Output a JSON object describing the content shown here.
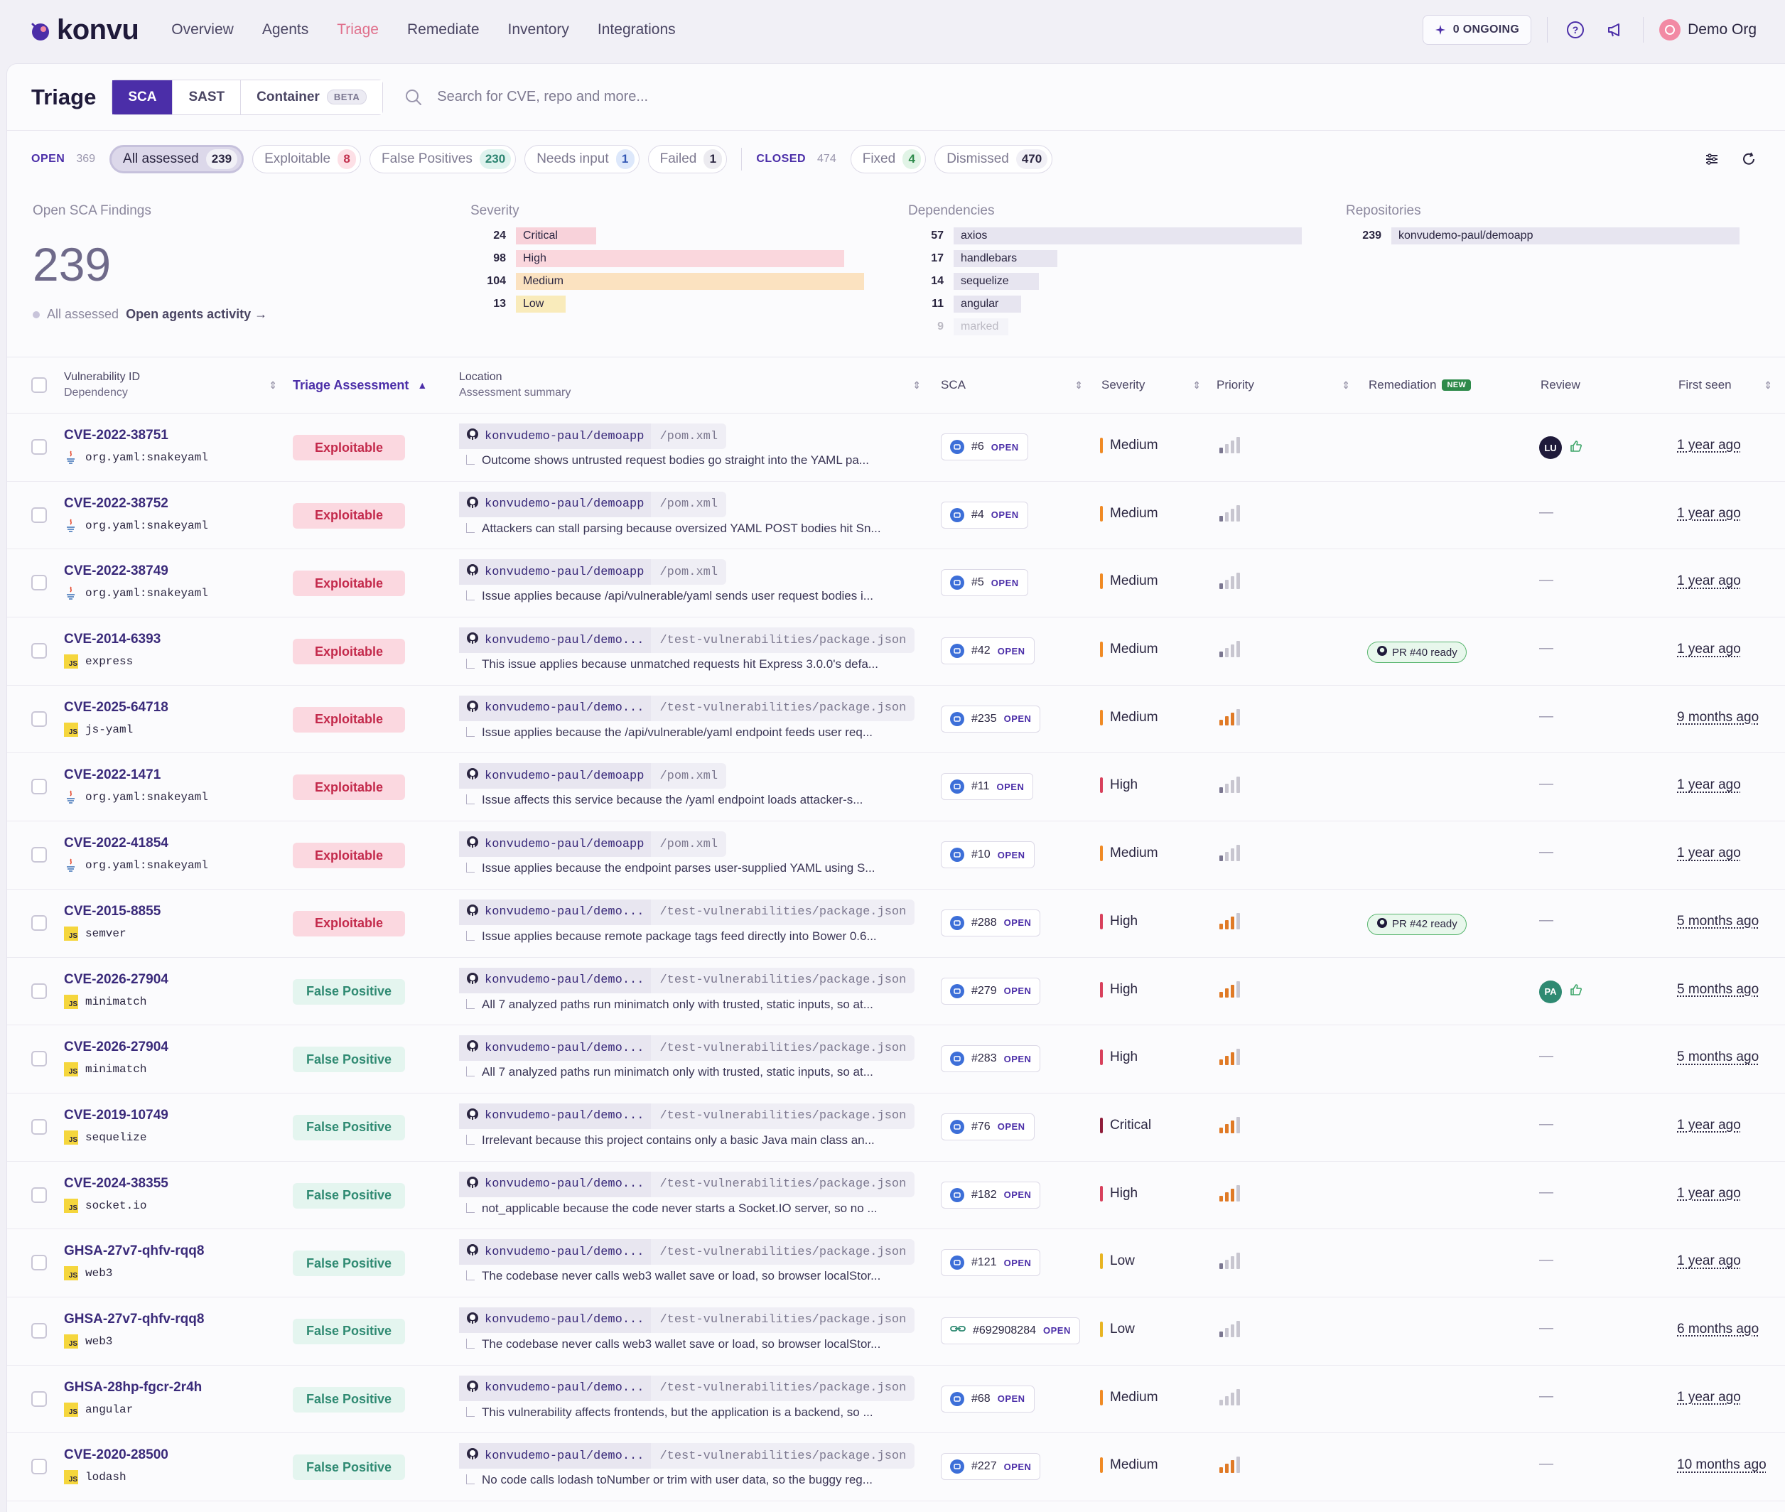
{
  "brand": "konvu",
  "nav": {
    "links": [
      "Overview",
      "Agents",
      "Triage",
      "Remediate",
      "Inventory",
      "Integrations"
    ],
    "active": "Triage",
    "ongoing_label": "0 ONGOING",
    "org_name": "Demo Org"
  },
  "triage": {
    "title": "Triage",
    "tabs": [
      {
        "label": "SCA",
        "active": true
      },
      {
        "label": "SAST",
        "active": false
      },
      {
        "label": "Container",
        "badge": "BETA",
        "active": false
      }
    ],
    "search_placeholder": "Search for CVE, repo and more..."
  },
  "filters": {
    "open_label": "OPEN",
    "open_count": "369",
    "open_chips": [
      {
        "label": "All assessed",
        "count": "239",
        "tone": "neutral",
        "active": true
      },
      {
        "label": "Exploitable",
        "count": "8",
        "tone": "red"
      },
      {
        "label": "False Positives",
        "count": "230",
        "tone": "teal"
      },
      {
        "label": "Needs input",
        "count": "1",
        "tone": "blue"
      },
      {
        "label": "Failed",
        "count": "1",
        "tone": "gray"
      }
    ],
    "closed_label": "CLOSED",
    "closed_count": "474",
    "closed_chips": [
      {
        "label": "Fixed",
        "count": "4",
        "tone": "green"
      },
      {
        "label": "Dismissed",
        "count": "470",
        "tone": "neutral"
      }
    ]
  },
  "stats": {
    "open_title": "Open SCA Findings",
    "open_total": "239",
    "assessed_label": "All assessed",
    "agents_link": "Open agents activity →",
    "severity_title": "Severity",
    "severity": [
      {
        "count": 24,
        "label": "Critical",
        "color": "#f8d2da"
      },
      {
        "count": 98,
        "label": "High",
        "color": "#fad7dd"
      },
      {
        "count": 104,
        "label": "Medium",
        "color": "#fbe2c0"
      },
      {
        "count": 13,
        "label": "Low",
        "color": "#f9ebbb"
      }
    ],
    "dependencies_title": "Dependencies",
    "dependencies": [
      {
        "count": 57,
        "label": "axios"
      },
      {
        "count": 17,
        "label": "handlebars"
      },
      {
        "count": 14,
        "label": "sequelize"
      },
      {
        "count": 11,
        "label": "angular"
      },
      {
        "count": 9,
        "label": "marked"
      }
    ],
    "repositories_title": "Repositories",
    "repositories": [
      {
        "count": 239,
        "label": "konvudemo-paul/demoapp"
      }
    ]
  },
  "table": {
    "headers": {
      "vuln_id": "Vulnerability ID",
      "dependency": "Dependency",
      "triage": "Triage Assessment",
      "location": "Location",
      "summary": "Assessment summary",
      "sca": "SCA",
      "severity": "Severity",
      "priority": "Priority",
      "remediation": "Remediation",
      "new_badge": "NEW",
      "review": "Review",
      "first_seen": "First seen"
    },
    "rows": [
      {
        "id": "CVE-2022-38751",
        "dep": "org.yaml:snakeyaml",
        "lang": "java",
        "assessment": "Exploitable",
        "repo": "konvudemo-paul/demoapp",
        "path": "/pom.xml",
        "summary": "Outcome shows untrusted request bodies go straight into the YAML pa...",
        "sca_num": "#6",
        "sca_status": "OPEN",
        "sca_kind": "dep",
        "severity": "Medium",
        "priority": 1,
        "remediation": "",
        "review": {
          "initials": "LU",
          "color": "#1f1a3a"
        },
        "first_seen": "1 year ago"
      },
      {
        "id": "CVE-2022-38752",
        "dep": "org.yaml:snakeyaml",
        "lang": "java",
        "assessment": "Exploitable",
        "repo": "konvudemo-paul/demoapp",
        "path": "/pom.xml",
        "summary": "Attackers can stall parsing because oversized YAML POST bodies hit Sn...",
        "sca_num": "#4",
        "sca_status": "OPEN",
        "sca_kind": "dep",
        "severity": "Medium",
        "priority": 1,
        "remediation": "",
        "review": null,
        "first_seen": "1 year ago"
      },
      {
        "id": "CVE-2022-38749",
        "dep": "org.yaml:snakeyaml",
        "lang": "java",
        "assessment": "Exploitable",
        "repo": "konvudemo-paul/demoapp",
        "path": "/pom.xml",
        "summary": "Issue applies because /api/vulnerable/yaml sends user request bodies i...",
        "sca_num": "#5",
        "sca_status": "OPEN",
        "sca_kind": "dep",
        "severity": "Medium",
        "priority": 1,
        "remediation": "",
        "review": null,
        "first_seen": "1 year ago"
      },
      {
        "id": "CVE-2014-6393",
        "dep": "express",
        "lang": "js",
        "assessment": "Exploitable",
        "repo": "konvudemo-paul/demo...",
        "path": "/test-vulnerabilities/package.json",
        "summary": "This issue applies because unmatched requests hit Express 3.0.0's defa...",
        "sca_num": "#42",
        "sca_status": "OPEN",
        "sca_kind": "dep",
        "severity": "Medium",
        "priority": 1,
        "remediation": "PR #40 ready",
        "review": null,
        "first_seen": "1 year ago"
      },
      {
        "id": "CVE-2025-64718",
        "dep": "js-yaml",
        "lang": "js",
        "assessment": "Exploitable",
        "repo": "konvudemo-paul/demo...",
        "path": "/test-vulnerabilities/package.json",
        "summary": "Issue applies because the /api/vulnerable/yaml endpoint feeds user req...",
        "sca_num": "#235",
        "sca_status": "OPEN",
        "sca_kind": "dep",
        "severity": "Medium",
        "priority": 2,
        "remediation": "",
        "review": null,
        "first_seen": "9 months ago"
      },
      {
        "id": "CVE-2022-1471",
        "dep": "org.yaml:snakeyaml",
        "lang": "java",
        "assessment": "Exploitable",
        "repo": "konvudemo-paul/demoapp",
        "path": "/pom.xml",
        "summary": "Issue affects this service because the /yaml endpoint loads attacker-s...",
        "sca_num": "#11",
        "sca_status": "OPEN",
        "sca_kind": "dep",
        "severity": "High",
        "priority": 1,
        "remediation": "",
        "review": null,
        "first_seen": "1 year ago"
      },
      {
        "id": "CVE-2022-41854",
        "dep": "org.yaml:snakeyaml",
        "lang": "java",
        "assessment": "Exploitable",
        "repo": "konvudemo-paul/demoapp",
        "path": "/pom.xml",
        "summary": "Issue applies because the endpoint parses user-supplied YAML using S...",
        "sca_num": "#10",
        "sca_status": "OPEN",
        "sca_kind": "dep",
        "severity": "Medium",
        "priority": 1,
        "remediation": "",
        "review": null,
        "first_seen": "1 year ago"
      },
      {
        "id": "CVE-2015-8855",
        "dep": "semver",
        "lang": "js",
        "assessment": "Exploitable",
        "repo": "konvudemo-paul/demo...",
        "path": "/test-vulnerabilities/package.json",
        "summary": "Issue applies because remote package tags feed directly into Bower 0.6...",
        "sca_num": "#288",
        "sca_status": "OPEN",
        "sca_kind": "dep",
        "severity": "High",
        "priority": 2,
        "remediation": "PR #42 ready",
        "review": null,
        "first_seen": "5 months ago"
      },
      {
        "id": "CVE-2026-27904",
        "dep": "minimatch",
        "lang": "js",
        "assessment": "False Positive",
        "repo": "konvudemo-paul/demo...",
        "path": "/test-vulnerabilities/package.json",
        "summary": "All 7 analyzed paths run minimatch only with trusted, static inputs, so at...",
        "sca_num": "#279",
        "sca_status": "OPEN",
        "sca_kind": "dep",
        "severity": "High",
        "priority": 2,
        "remediation": "",
        "review": {
          "initials": "PA",
          "color": "#2f8a72"
        },
        "first_seen": "5 months ago"
      },
      {
        "id": "CVE-2026-27904",
        "dep": "minimatch",
        "lang": "js",
        "assessment": "False Positive",
        "repo": "konvudemo-paul/demo...",
        "path": "/test-vulnerabilities/package.json",
        "summary": "All 7 analyzed paths run minimatch only with trusted, static inputs, so at...",
        "sca_num": "#283",
        "sca_status": "OPEN",
        "sca_kind": "dep",
        "severity": "High",
        "priority": 2,
        "remediation": "",
        "review": null,
        "first_seen": "5 months ago"
      },
      {
        "id": "CVE-2019-10749",
        "dep": "sequelize",
        "lang": "js",
        "assessment": "False Positive",
        "repo": "konvudemo-paul/demo...",
        "path": "/test-vulnerabilities/package.json",
        "summary": "Irrelevant because this project contains only a basic Java main class an...",
        "sca_num": "#76",
        "sca_status": "OPEN",
        "sca_kind": "dep",
        "severity": "Critical",
        "priority": 2,
        "remediation": "",
        "review": null,
        "first_seen": "1 year ago"
      },
      {
        "id": "CVE-2024-38355",
        "dep": "socket.io",
        "lang": "js",
        "assessment": "False Positive",
        "repo": "konvudemo-paul/demo...",
        "path": "/test-vulnerabilities/package.json",
        "summary": "not_applicable because the code never starts a Socket.IO server, so no ...",
        "sca_num": "#182",
        "sca_status": "OPEN",
        "sca_kind": "dep",
        "severity": "High",
        "priority": 2,
        "remediation": "",
        "review": null,
        "first_seen": "1 year ago"
      },
      {
        "id": "GHSA-27v7-qhfv-rqq8",
        "dep": "web3",
        "lang": "js",
        "assessment": "False Positive",
        "repo": "konvudemo-paul/demo...",
        "path": "/test-vulnerabilities/package.json",
        "summary": "The codebase never calls web3 wallet save or load, so browser localStor...",
        "sca_num": "#121",
        "sca_status": "OPEN",
        "sca_kind": "dep",
        "severity": "Low",
        "priority": 1,
        "remediation": "",
        "review": null,
        "first_seen": "1 year ago"
      },
      {
        "id": "GHSA-27v7-qhfv-rqq8",
        "dep": "web3",
        "lang": "js",
        "assessment": "False Positive",
        "repo": "konvudemo-paul/demo...",
        "path": "/test-vulnerabilities/package.json",
        "summary": "The codebase never calls web3 wallet save or load, so browser localStor...",
        "sca_num": "#692908284",
        "sca_status": "OPEN",
        "sca_kind": "link",
        "severity": "Low",
        "priority": 1,
        "remediation": "",
        "review": null,
        "first_seen": "6 months ago"
      },
      {
        "id": "GHSA-28hp-fgcr-2r4h",
        "dep": "angular",
        "lang": "js",
        "assessment": "False Positive",
        "repo": "konvudemo-paul/demo...",
        "path": "/test-vulnerabilities/package.json",
        "summary": "This vulnerability affects frontends, but the application is a backend, so ...",
        "sca_num": "#68",
        "sca_status": "OPEN",
        "sca_kind": "dep",
        "severity": "Medium",
        "priority": 0,
        "remediation": "",
        "review": null,
        "first_seen": "1 year ago"
      },
      {
        "id": "CVE-2020-28500",
        "dep": "lodash",
        "lang": "js",
        "assessment": "False Positive",
        "repo": "konvudemo-paul/demo...",
        "path": "/test-vulnerabilities/package.json",
        "summary": "No code calls lodash toNumber or trim with user data, so the buggy reg...",
        "sca_num": "#227",
        "sca_status": "OPEN",
        "sca_kind": "dep",
        "severity": "Medium",
        "priority": 2,
        "remediation": "",
        "review": null,
        "first_seen": "10 months ago"
      }
    ]
  },
  "colors": {
    "accent": "#4b2ea8",
    "severity": {
      "Critical": "#8f1d3a",
      "High": "#d8405c",
      "Medium": "#f08a24",
      "Low": "#e8b422"
    }
  }
}
